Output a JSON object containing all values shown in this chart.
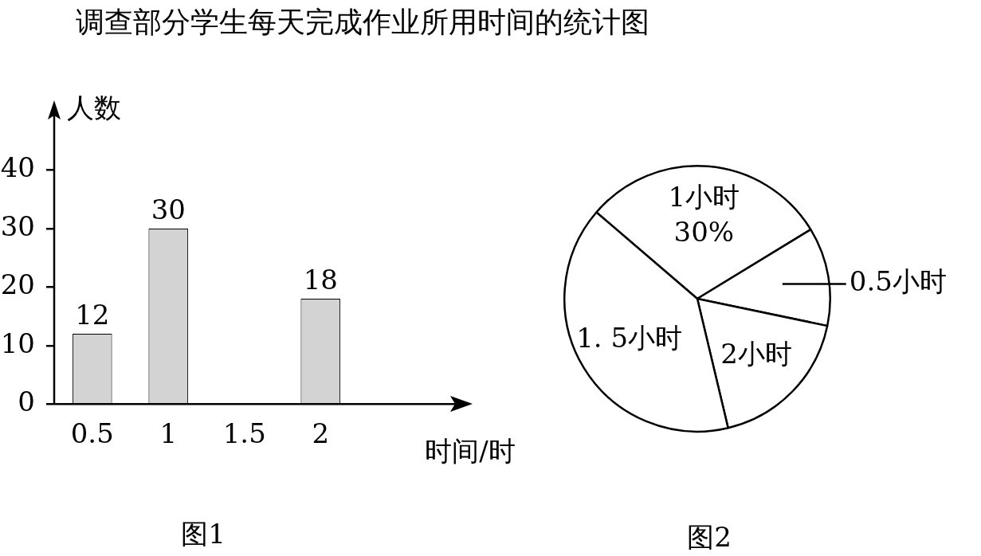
{
  "chart_data": [
    {
      "type": "bar",
      "title": "调查部分学生每天完成作业所用时间的统计图",
      "categories": [
        "0.5",
        "1",
        "1.5",
        "2"
      ],
      "values": [
        12,
        30,
        null,
        18
      ],
      "color": "#d3d3d3",
      "data_labels": true,
      "ylim": [
        0,
        50
      ],
      "yticks": [
        0,
        10,
        20,
        30,
        40
      ],
      "ylabel": "人数",
      "xlabel": "时间/时",
      "grid": false,
      "legend": false,
      "annotations": [
        "图1"
      ]
    },
    {
      "type": "pie",
      "categories": [
        "1小时",
        "0.5小时",
        "2小时",
        "1. 5小时"
      ],
      "values": [
        30,
        12,
        18,
        40
      ],
      "colors": [
        "#ffffff",
        "#ffffff",
        "#ffffff",
        "#ffffff"
      ],
      "value_labels": [
        "30%",
        null,
        null,
        null
      ],
      "legend": false,
      "annotations": [
        "图2"
      ]
    }
  ]
}
